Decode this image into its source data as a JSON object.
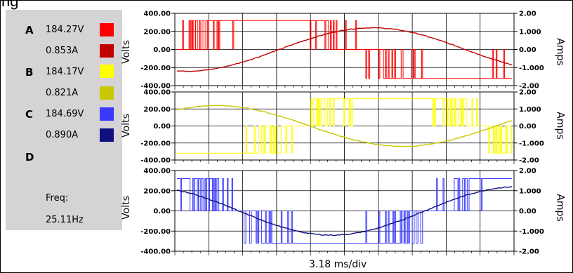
{
  "window": {
    "title_fragment": "ng"
  },
  "channels": [
    {
      "letter": "A",
      "voltage": "184.27V",
      "current": "0.853A",
      "volt_color": "#ff0000",
      "amp_color": "#c00000"
    },
    {
      "letter": "B",
      "voltage": "184.17V",
      "current": "0.821A",
      "volt_color": "#ffff00",
      "amp_color": "#c8c800"
    },
    {
      "letter": "C",
      "voltage": "184.69V",
      "current": "0.890A",
      "volt_color": "#3a3aff",
      "amp_color": "#101080"
    },
    {
      "letter": "D"
    }
  ],
  "frequency": {
    "label": "Freq:",
    "value": "25.11Hz"
  },
  "axes": {
    "left_label": "Volts",
    "right_label": "Amps",
    "left_ticks": [
      "400.00",
      "200.00",
      "0.00",
      "-200.00",
      "-400.00"
    ],
    "right_ticks": [
      "2.00",
      "1.000",
      "0.00",
      "-1.000",
      "-2.00"
    ],
    "x_label": "3.18 ms/div"
  },
  "chart_data": [
    {
      "type": "line",
      "series": [
        {
          "values_description": "phase A PWM voltage (red)",
          "ylim": [
            -400,
            400
          ]
        },
        {
          "values_description": "phase A current sine (dark red)",
          "ylim": [
            -2,
            2
          ],
          "amplitude": 1.2
        }
      ],
      "x_divisions": 10
    },
    {
      "type": "line",
      "series": [
        {
          "ylim": [
            -400,
            400
          ]
        },
        {
          "ylim": [
            -2,
            2
          ],
          "amplitude": 1.2
        }
      ],
      "x_divisions": 10
    },
    {
      "type": "line",
      "series": [
        {
          "ylim": [
            -400,
            400
          ]
        },
        {
          "ylim": [
            -2,
            2
          ],
          "amplitude": 1.2
        }
      ],
      "x_divisions": 10
    }
  ]
}
